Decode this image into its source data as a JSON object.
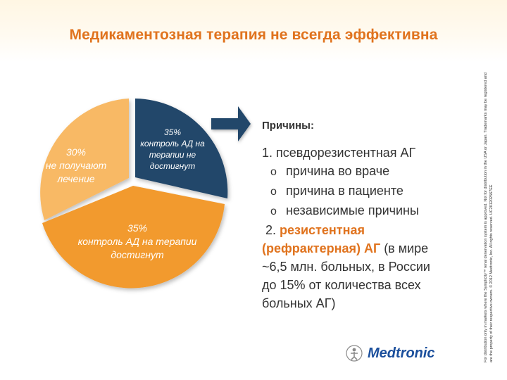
{
  "slide": {
    "title": "Медикаментозная терапия не всегда эффективна"
  },
  "pie": {
    "segments": [
      {
        "key": "blue",
        "percent": "35%",
        "text": "контроль АД на терапии не достигнут",
        "color": "#24476b"
      },
      {
        "key": "orange",
        "percent": "35%",
        "text": "контроль АД на терапии достигнут",
        "color": "#f29a2e"
      },
      {
        "key": "light",
        "percent": "30%",
        "text": "не получают лечение",
        "color": "#f8b965"
      }
    ]
  },
  "reasons": {
    "title": "Причины:",
    "item1": "1. псевдорезистентная АГ",
    "sub_bullet": "o",
    "subitems": [
      "причина во враче",
      "причина в пациенте",
      "независимые причины"
    ],
    "item2_number": "2.",
    "item2_highlight_a": "резистентная",
    "item2_highlight_b": "(рефрактерная)  АГ",
    "item2_rest_a": "(в мире",
    "item2_rest_b": "~6,5 млн. больных, в России",
    "item2_rest_c": "до 15% от количества всех",
    "item2_rest_d": "больных АГ)"
  },
  "footer": {
    "disclaimer": "For distribution only in markets where the Symplicity™ renal denervation system is approved. Not for distribution in the USA or Japan. Trademarks may be registered and are the property of their respective owners. © 2012 Medtronic, Inc. All rights reserved. UC201202567EE",
    "logo": "Medtronic"
  },
  "colors": {
    "title": "#e0731e",
    "navy": "#24476b",
    "orange": "#f29a2e",
    "light_orange": "#f8b965",
    "logo": "#1b4f9c"
  }
}
